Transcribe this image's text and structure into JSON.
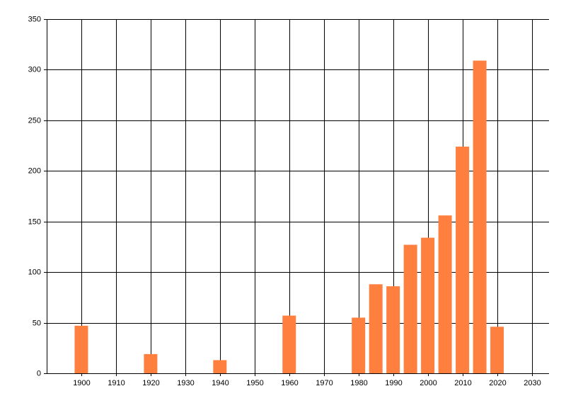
{
  "chart_data": {
    "type": "bar",
    "x": [
      1900,
      1920,
      1940,
      1960,
      1980,
      1985,
      1990,
      1995,
      2000,
      2005,
      2010,
      2015,
      2020
    ],
    "values": [
      47,
      19,
      13,
      57,
      55,
      88,
      86,
      127,
      134,
      156,
      224,
      309,
      46
    ],
    "color": "#ff7f3f",
    "xlim": [
      1890,
      2035
    ],
    "xticks": [
      1900,
      1910,
      1920,
      1930,
      1940,
      1950,
      1960,
      1970,
      1980,
      1990,
      2000,
      2010,
      2020,
      2030
    ],
    "ylim": [
      0,
      350
    ],
    "yticks": [
      0,
      50,
      100,
      150,
      200,
      250,
      300,
      350
    ],
    "grid": true
  }
}
